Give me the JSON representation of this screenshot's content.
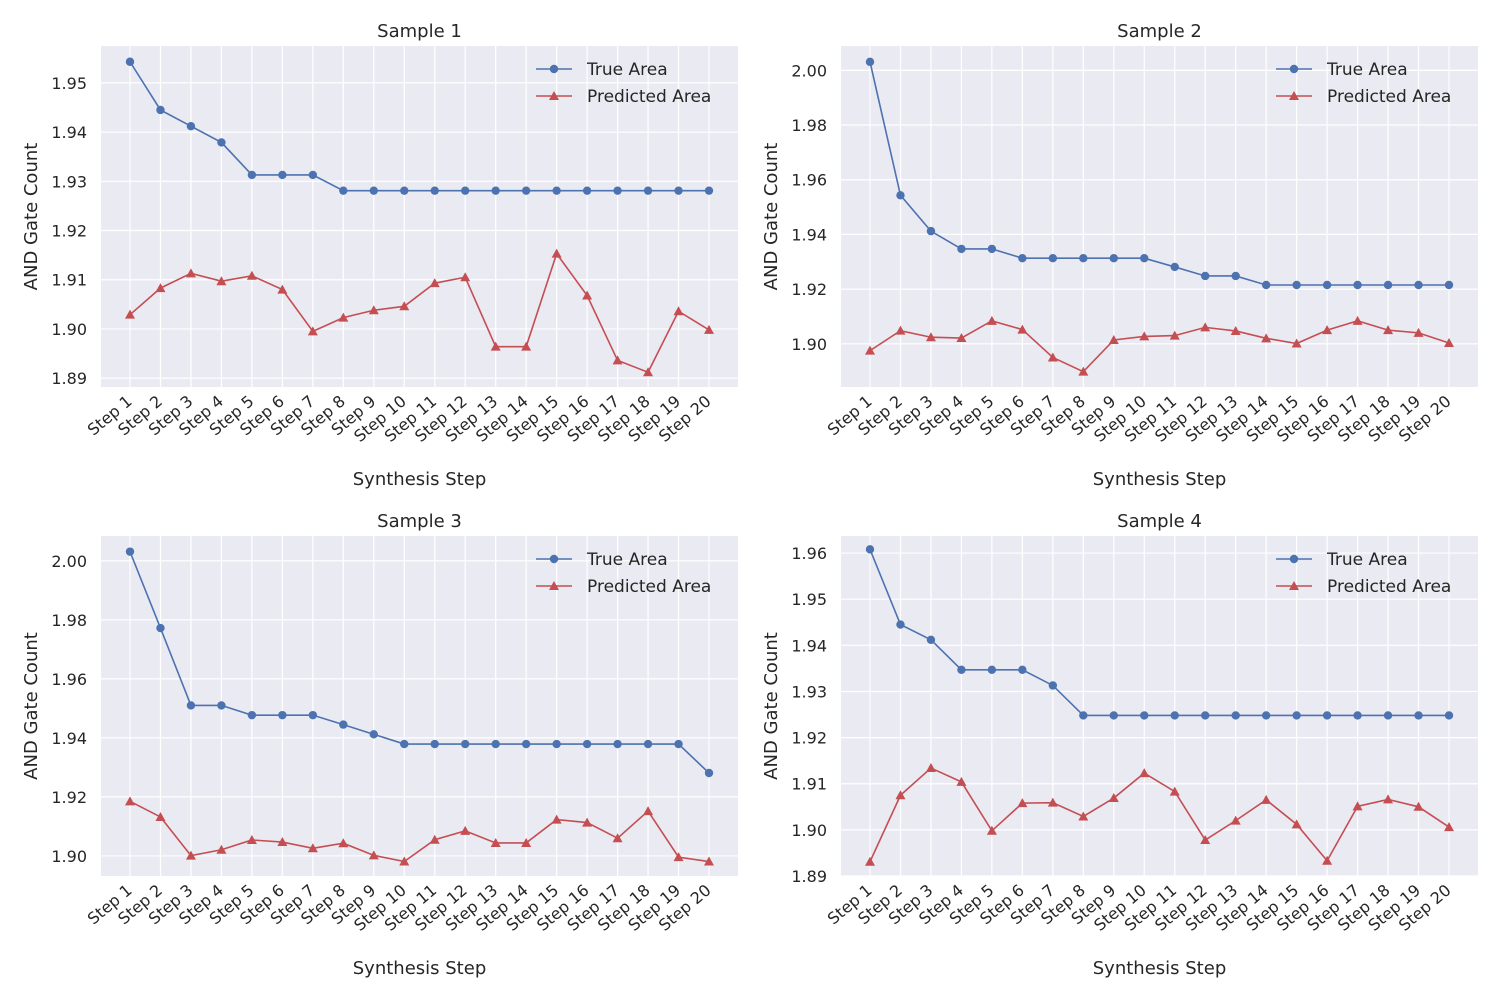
{
  "chart_data": [
    {
      "type": "line",
      "title": "Sample 1",
      "xlabel": "Synthesis Step",
      "ylabel": "AND Gate Count",
      "categories": [
        "Step 1",
        "Step 2",
        "Step 3",
        "Step 4",
        "Step 5",
        "Step 6",
        "Step 7",
        "Step 8",
        "Step 9",
        "Step 10",
        "Step 11",
        "Step 12",
        "Step 13",
        "Step 14",
        "Step 15",
        "Step 16",
        "Step 17",
        "Step 18",
        "Step 19",
        "Step 20"
      ],
      "ylim": [
        1.8882,
        1.9575
      ],
      "yticks": [
        1.89,
        1.9,
        1.91,
        1.92,
        1.93,
        1.94,
        1.95
      ],
      "ytick_labels": [
        "1.89",
        "1.90",
        "1.91",
        "1.92",
        "1.93",
        "1.94",
        "1.95"
      ],
      "grid": true,
      "legend_position": "upper-right",
      "series": [
        {
          "name": "True Area",
          "color": "#4c72b0",
          "marker": "circle",
          "values": [
            1.9543,
            1.9445,
            1.9412,
            1.9379,
            1.9313,
            1.9313,
            1.9313,
            1.9281,
            1.9281,
            1.9281,
            1.9281,
            1.9281,
            1.9281,
            1.9281,
            1.9281,
            1.9281,
            1.9281,
            1.9281,
            1.9281,
            1.9281
          ]
        },
        {
          "name": "Predicted Area",
          "color": "#c44e52",
          "marker": "triangle",
          "values": [
            1.9029,
            1.9083,
            1.9113,
            1.9097,
            1.9108,
            1.908,
            1.8995,
            1.9023,
            1.9038,
            1.9046,
            1.9093,
            1.9105,
            1.8964,
            1.8964,
            1.9153,
            1.9068,
            1.8936,
            1.8912,
            1.9036,
            1.8998
          ]
        }
      ]
    },
    {
      "type": "line",
      "title": "Sample 2",
      "xlabel": "Synthesis Step",
      "ylabel": "AND Gate Count",
      "categories": [
        "Step 1",
        "Step 2",
        "Step 3",
        "Step 4",
        "Step 5",
        "Step 6",
        "Step 7",
        "Step 8",
        "Step 9",
        "Step 10",
        "Step 11",
        "Step 12",
        "Step 13",
        "Step 14",
        "Step 15",
        "Step 16",
        "Step 17",
        "Step 18",
        "Step 19",
        "Step 20"
      ],
      "ylim": [
        1.8842,
        2.0089
      ],
      "yticks": [
        1.9,
        1.92,
        1.94,
        1.96,
        1.98,
        2.0
      ],
      "ytick_labels": [
        "1.90",
        "1.92",
        "1.94",
        "1.96",
        "1.98",
        "2.00"
      ],
      "grid": true,
      "legend_position": "upper-right",
      "series": [
        {
          "name": "True Area",
          "color": "#4c72b0",
          "marker": "circle",
          "values": [
            2.0031,
            1.9543,
            1.9412,
            1.9347,
            1.9347,
            1.9313,
            1.9313,
            1.9313,
            1.9313,
            1.9313,
            1.9281,
            1.9248,
            1.9248,
            1.9215,
            1.9215,
            1.9215,
            1.9215,
            1.9215,
            1.9215,
            1.9215
          ]
        },
        {
          "name": "Predicted Area",
          "color": "#c44e52",
          "marker": "triangle",
          "values": [
            1.8975,
            1.9048,
            1.9024,
            1.9021,
            1.9084,
            1.9052,
            1.895,
            1.8898,
            1.9014,
            1.9027,
            1.903,
            1.906,
            1.9047,
            1.902,
            1.9001,
            1.905,
            1.9084,
            1.905,
            1.904,
            1.9003
          ]
        }
      ]
    },
    {
      "type": "line",
      "title": "Sample 3",
      "xlabel": "Synthesis Step",
      "ylabel": "AND Gate Count",
      "categories": [
        "Step 1",
        "Step 2",
        "Step 3",
        "Step 4",
        "Step 5",
        "Step 6",
        "Step 7",
        "Step 8",
        "Step 9",
        "Step 10",
        "Step 11",
        "Step 12",
        "Step 13",
        "Step 14",
        "Step 15",
        "Step 16",
        "Step 17",
        "Step 18",
        "Step 19",
        "Step 20"
      ],
      "ylim": [
        1.8932,
        2.0084
      ],
      "yticks": [
        1.9,
        1.92,
        1.94,
        1.96,
        1.98,
        2.0
      ],
      "ytick_labels": [
        "1.90",
        "1.92",
        "1.94",
        "1.96",
        "1.98",
        "2.00"
      ],
      "grid": true,
      "legend_position": "upper-right",
      "series": [
        {
          "name": "True Area",
          "color": "#4c72b0",
          "marker": "circle",
          "values": [
            2.0031,
            1.9772,
            1.951,
            1.951,
            1.9477,
            1.9477,
            1.9477,
            1.9445,
            1.9412,
            1.9379,
            1.9379,
            1.9379,
            1.9379,
            1.9379,
            1.9379,
            1.9379,
            1.9379,
            1.9379,
            1.9379,
            1.9281
          ]
        },
        {
          "name": "Predicted Area",
          "color": "#c44e52",
          "marker": "triangle",
          "values": [
            1.9185,
            1.9132,
            1.9001,
            1.9021,
            1.9054,
            1.9047,
            1.9026,
            1.9043,
            1.9002,
            1.8981,
            1.9055,
            1.9085,
            1.9044,
            1.9044,
            1.9123,
            1.9113,
            1.906,
            1.9152,
            1.8996,
            1.8981
          ]
        }
      ]
    },
    {
      "type": "line",
      "title": "Sample 4",
      "xlabel": "Synthesis Step",
      "ylabel": "AND Gate Count",
      "categories": [
        "Step 1",
        "Step 2",
        "Step 3",
        "Step 4",
        "Step 5",
        "Step 6",
        "Step 7",
        "Step 8",
        "Step 9",
        "Step 10",
        "Step 11",
        "Step 12",
        "Step 13",
        "Step 14",
        "Step 15",
        "Step 16",
        "Step 17",
        "Step 18",
        "Step 19",
        "Step 20"
      ],
      "ylim": [
        1.89,
        1.9637
      ],
      "yticks": [
        1.89,
        1.9,
        1.91,
        1.92,
        1.93,
        1.94,
        1.95,
        1.96
      ],
      "ytick_labels": [
        "1.89",
        "1.90",
        "1.91",
        "1.92",
        "1.93",
        "1.94",
        "1.95",
        "1.96"
      ],
      "grid": true,
      "legend_position": "upper-right",
      "series": [
        {
          "name": "True Area",
          "color": "#4c72b0",
          "marker": "circle",
          "values": [
            1.9608,
            1.9445,
            1.9412,
            1.9347,
            1.9347,
            1.9347,
            1.9313,
            1.9248,
            1.9248,
            1.9248,
            1.9248,
            1.9248,
            1.9248,
            1.9248,
            1.9248,
            1.9248,
            1.9248,
            1.9248,
            1.9248,
            1.9248
          ]
        },
        {
          "name": "Predicted Area",
          "color": "#c44e52",
          "marker": "triangle",
          "values": [
            1.8931,
            1.9075,
            1.9134,
            1.9104,
            1.8998,
            1.9058,
            1.9059,
            1.9029,
            1.9069,
            1.9123,
            1.9083,
            1.8978,
            1.902,
            1.9065,
            1.9012,
            1.8933,
            1.9051,
            1.9066,
            1.905,
            1.9006
          ]
        }
      ]
    }
  ]
}
